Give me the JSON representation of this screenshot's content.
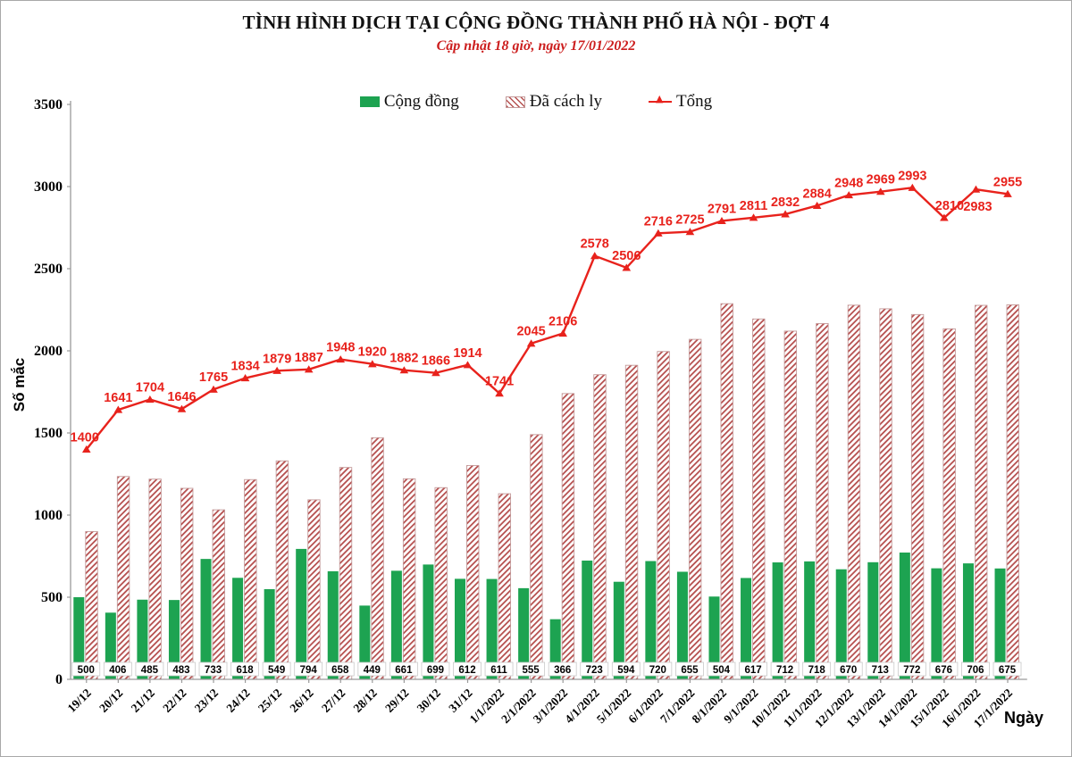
{
  "header": {
    "title": "TÌNH HÌNH DỊCH TẠI CỘNG ĐỒNG THÀNH PHỐ HÀ NỘI - ĐỢT 4",
    "subtitle": "Cập nhật 18 giờ, ngày 17/01/2022"
  },
  "legend": {
    "items": [
      {
        "label": "Cộng đồng",
        "swatch": "green-solid-square"
      },
      {
        "label": "Đã cách ly",
        "swatch": "red-hatch-square"
      },
      {
        "label": "Tổng",
        "swatch": "red-line-triangle-marker"
      }
    ]
  },
  "axes": {
    "y_label": "Số mắc",
    "x_label": "Ngày",
    "y_ticks": [
      0,
      500,
      1000,
      1500,
      2000,
      2500,
      3000,
      3500
    ],
    "y_max": 3500
  },
  "colors": {
    "green": "#1da351",
    "red": "#e8221c",
    "hatch_stripe": "#b65150",
    "hatch_border": "#c49a9a",
    "axis": "#9a9a9a",
    "subtitle_red": "#cc1e1e"
  },
  "chart_data": {
    "type": "bar",
    "title": "TÌNH HÌNH DỊCH TẠI CỘNG ĐỒNG THÀNH PHỐ HÀ NỘI - ĐỢT 4",
    "subtitle": "Cập nhật 18 giờ, ngày 17/01/2022",
    "xlabel": "Ngày",
    "ylabel": "Số mắc",
    "ylim": [
      0,
      3500
    ],
    "grid": false,
    "legend_position": "top",
    "categories": [
      "19/12",
      "20/12",
      "21/12",
      "22/12",
      "23/12",
      "24/12",
      "25/12",
      "26/12",
      "27/12",
      "28/12",
      "29/12",
      "30/12",
      "31/12",
      "1/1/2022",
      "2/1/2022",
      "3/1/2022",
      "4/1/2022",
      "5/1/2022",
      "6/1/2022",
      "7/1/2022",
      "8/1/2022",
      "9/1/2022",
      "10/1/2022",
      "11/1/2022",
      "12/1/2022",
      "13/1/2022",
      "14/1/2022",
      "15/1/2022",
      "16/1/2022",
      "17/1/2022"
    ],
    "series": [
      {
        "name": "Cộng đồng",
        "type": "bar",
        "style": "solid-green",
        "labels_shown": true,
        "values": [
          500,
          406,
          485,
          483,
          733,
          618,
          549,
          794,
          658,
          449,
          661,
          699,
          612,
          611,
          555,
          366,
          723,
          594,
          720,
          655,
          504,
          617,
          712,
          718,
          670,
          713,
          772,
          676,
          706,
          675
        ]
      },
      {
        "name": "Đã cách ly",
        "type": "bar",
        "style": "red-hatch",
        "labels_shown": false,
        "values": [
          900,
          1235,
          1219,
          1163,
          1032,
          1216,
          1330,
          1093,
          1290,
          1471,
          1221,
          1167,
          1302,
          1130,
          1490,
          1740,
          1855,
          1912,
          1996,
          2070,
          2287,
          2194,
          2120,
          2166,
          2278,
          2256,
          2221,
          2134,
          2277,
          2280
        ]
      },
      {
        "name": "Tổng",
        "type": "line",
        "style": "red-line-triangle-markers",
        "labels_shown": true,
        "values": [
          1400,
          1641,
          1704,
          1646,
          1765,
          1834,
          1879,
          1887,
          1948,
          1920,
          1882,
          1866,
          1914,
          1741,
          2045,
          2106,
          2578,
          2506,
          2716,
          2725,
          2791,
          2811,
          2832,
          2884,
          2948,
          2969,
          2993,
          2810,
          2983,
          2955
        ]
      }
    ]
  }
}
